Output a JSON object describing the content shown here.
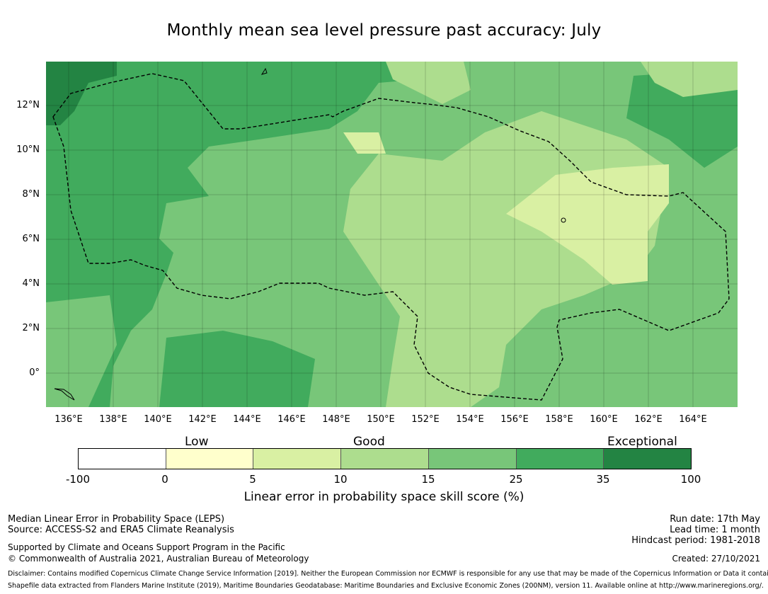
{
  "title": "Monthly mean sea level pressure past accuracy: July",
  "map": {
    "lat_ticks": [
      "12°N",
      "10°N",
      "8°N",
      "6°N",
      "4°N",
      "2°N",
      "0°"
    ],
    "lon_ticks": [
      "136°E",
      "138°E",
      "140°E",
      "142°E",
      "144°E",
      "146°E",
      "148°E",
      "150°E",
      "152°E",
      "154°E",
      "156°E",
      "158°E",
      "160°E",
      "162°E",
      "164°E"
    ],
    "colors": {
      "band_neg100_0": "#ffffff",
      "band_0_5": "#ffffcc",
      "band_5_10": "#d9f0a3",
      "band_10_15": "#addd8e",
      "band_15_25": "#78c679",
      "band_25_35": "#41ab5d",
      "band_35_100": "#238443"
    }
  },
  "legend": {
    "categories": [
      "Low",
      "Good",
      "Exceptional"
    ],
    "ticks": [
      "-100",
      "0",
      "5",
      "10",
      "15",
      "25",
      "35",
      "100"
    ],
    "label": "Linear error in probability space skill score (%)"
  },
  "footer": {
    "method": "Median Linear Error in Probability Space (LEPS)",
    "source": "Source: ACCESS-S2 and ERA5 Climate Reanalysis",
    "support": "Supported by Climate and Oceans Support Program in the Pacific",
    "copyright": "© Commonwealth of Australia 2021, Australian Bureau of Meteorology",
    "run_date": "Run date: 17th May",
    "lead_time": "Lead time: 1 month",
    "hindcast": "Hindcast period: 1981-2018",
    "created": "Created: 27/10/2021",
    "disclaimer_1": "Disclaimer: Contains modified Copernicus Climate Change Service Information [2019]. Neither the European Commission nor ECMWF is responsible for any use that may be made of the Copernicus Information or Data it contains.",
    "disclaimer_2": "Shapefile data extracted from Flanders Marine Institute (2019), Maritime Boundaries Geodatabase: Maritime Boundaries and Exclusive Economic Zones (200NM), version 11. Available online at http://www.marineregions.org/."
  }
}
